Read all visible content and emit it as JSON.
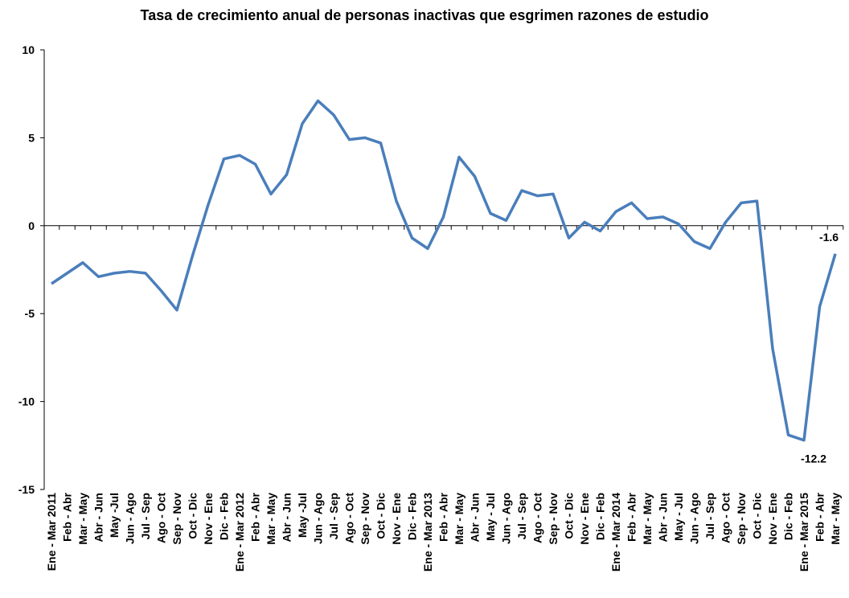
{
  "chart_data": {
    "type": "line",
    "title": "Tasa de crecimiento anual de personas inactivas que esgrimen razones de estudio",
    "categories": [
      "Ene - Mar 2011",
      "Feb - Abr",
      "Mar - May",
      "Abr - Jun",
      "May -Jul",
      "Jun - Ago",
      "Jul - Sep",
      "Ago - Oct",
      "Sep - Nov",
      "Oct - Dic",
      "Nov - Ene",
      "Dic - Feb",
      "Ene - Mar 2012",
      "Feb - Abr",
      "Mar - May",
      "Abr - Jun",
      "May -Jul",
      "Jun - Ago",
      "Jul - Sep",
      "Ago - Oct",
      "Sep - Nov",
      "Oct - Dic",
      "Nov - Ene",
      "Dic - Feb",
      "Ene - Mar 2013",
      "Feb - Abr",
      "Mar - May",
      "Abr - Jun",
      "May - Jul",
      "Jun - Ago",
      "Jul - Sep",
      "Ago - Oct",
      "Sep - Nov",
      "Oct - Dic",
      "Nov - Ene",
      "Dic - Feb",
      "Ene - Mar 2014",
      "Feb - Abr",
      "Mar - May",
      "Abr - Jun",
      "May - Jul",
      "Jun - Ago",
      "Jul - Sep",
      "Ago - Oct",
      "Sep - Nov",
      "Oct - Dic",
      "Nov - Ene",
      "Dic - Feb",
      "Ene - Mar 2015",
      "Feb - Abr",
      "Mar - May"
    ],
    "values": [
      -3.3,
      -2.7,
      -2.1,
      -2.9,
      -2.7,
      -2.6,
      -2.7,
      -3.7,
      -4.8,
      -1.7,
      1.2,
      3.8,
      4.0,
      3.5,
      1.8,
      2.9,
      5.8,
      7.1,
      6.3,
      4.9,
      5.0,
      4.7,
      1.4,
      -0.7,
      -1.3,
      0.5,
      3.9,
      2.8,
      0.7,
      0.3,
      2.0,
      1.7,
      1.8,
      -0.7,
      0.2,
      -0.3,
      0.8,
      1.3,
      0.4,
      0.5,
      0.1,
      -0.9,
      -1.3,
      0.2,
      1.3,
      1.4,
      -7.0,
      -11.9,
      -12.2,
      -4.6,
      -1.6
    ],
    "color": "#4a7ebb",
    "ylim": [
      -15,
      10
    ],
    "yticks": [
      -15,
      -10,
      -5,
      0,
      5,
      10
    ],
    "grid": false,
    "labeled_points": [
      48,
      50
    ]
  }
}
